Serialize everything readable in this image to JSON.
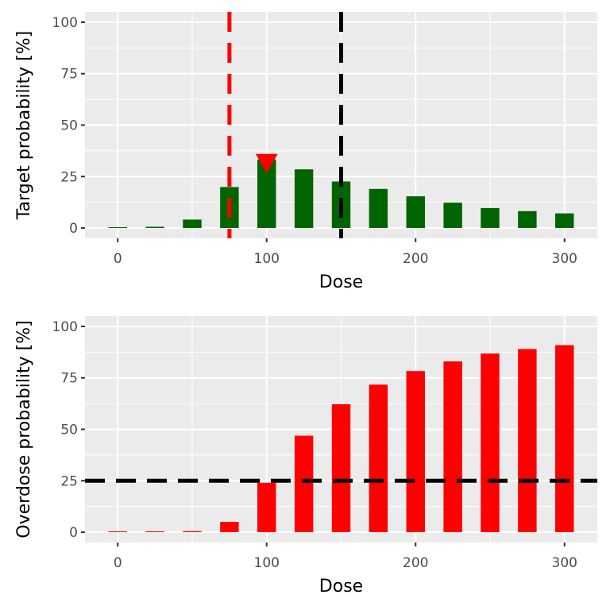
{
  "chart_data": [
    {
      "type": "bar",
      "xlabel": "Dose",
      "ylabel": "Target probability [%]",
      "x": [
        0,
        25,
        50,
        75,
        100,
        125,
        150,
        175,
        200,
        225,
        250,
        275,
        300
      ],
      "values": [
        0.4,
        0.6,
        4.1,
        19.9,
        33.3,
        28.5,
        22.6,
        19.0,
        15.4,
        12.3,
        9.7,
        8.2,
        7.1
      ],
      "bar_color": "#006400",
      "xlim": [
        -22,
        322
      ],
      "ylim": [
        -5,
        105
      ],
      "xticks": [
        "0",
        "100",
        "200",
        "300"
      ],
      "yticks": [
        "0",
        "25",
        "50",
        "75",
        "100"
      ],
      "vlines": [
        {
          "x": 75,
          "color": "#FF0000",
          "style": "dashed"
        },
        {
          "x": 150,
          "color": "#000000",
          "style": "dashed"
        }
      ],
      "marker": {
        "x": 100,
        "shape": "triangle-down",
        "color": "#FF0000"
      },
      "grid": true
    },
    {
      "type": "bar",
      "xlabel": "Dose",
      "ylabel": "Overdose probability [%]",
      "x": [
        0,
        25,
        50,
        75,
        100,
        125,
        150,
        175,
        200,
        225,
        250,
        275,
        300
      ],
      "values": [
        0.4,
        0.4,
        0.5,
        5.0,
        24.0,
        46.9,
        62.2,
        71.7,
        78.3,
        83.0,
        86.8,
        89.0,
        90.9
      ],
      "bar_color": "#FF0000",
      "xlim": [
        -22,
        322
      ],
      "ylim": [
        -5,
        105
      ],
      "xticks": [
        "0",
        "100",
        "200",
        "300"
      ],
      "yticks": [
        "0",
        "25",
        "50",
        "75",
        "100"
      ],
      "hlines": [
        {
          "y": 25,
          "color": "#000000",
          "style": "dashed"
        }
      ],
      "grid": true
    }
  ]
}
